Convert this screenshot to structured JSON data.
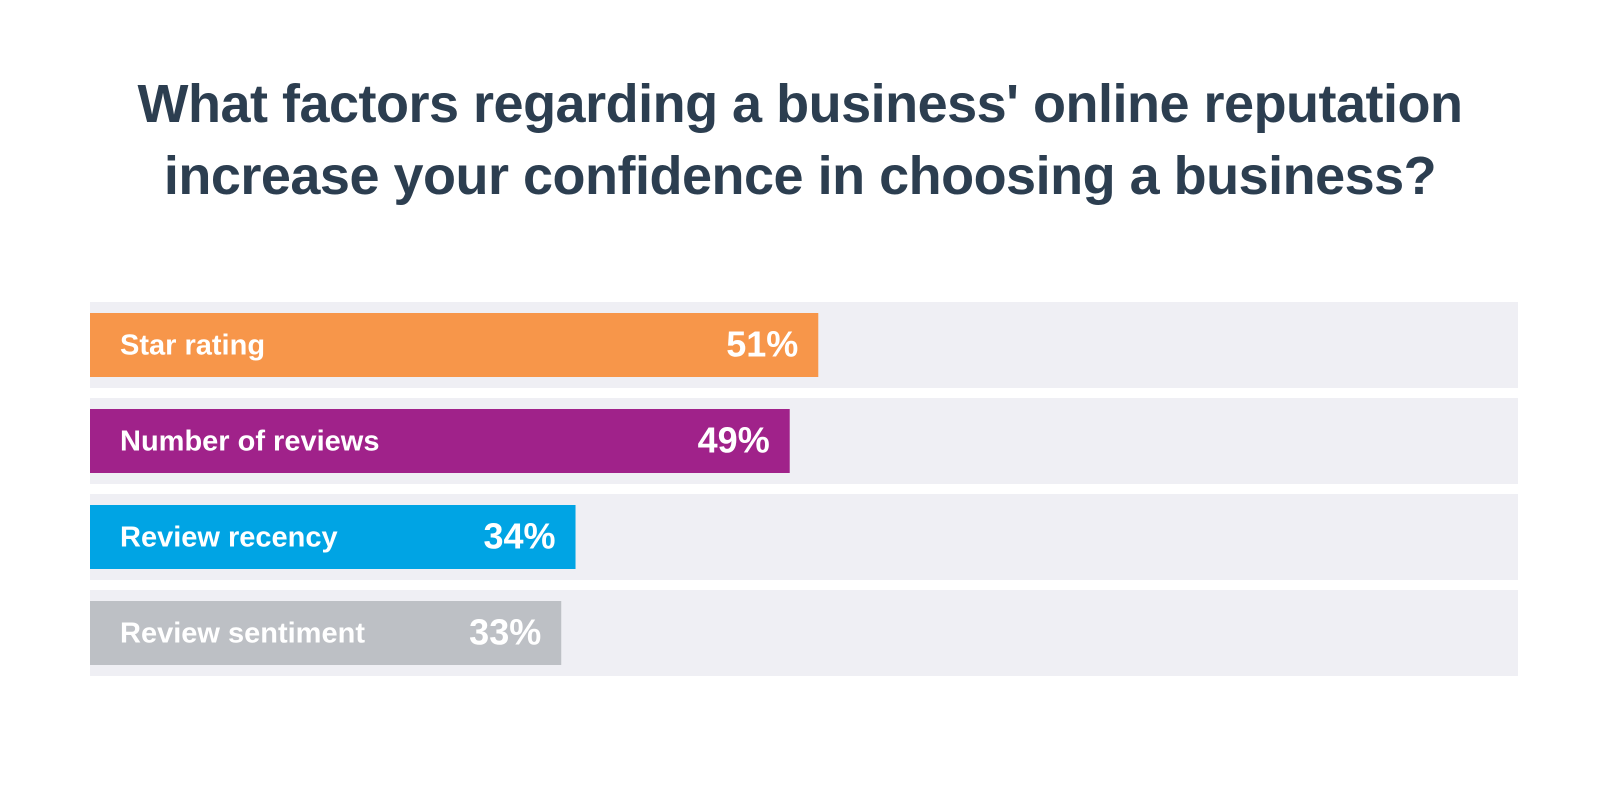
{
  "chart_data": {
    "type": "bar",
    "orientation": "horizontal",
    "title": "What factors regarding a business' online reputation increase your confidence in choosing a business?",
    "categories": [
      "Star rating",
      "Number of reviews",
      "Review recency",
      "Review sentiment"
    ],
    "values": [
      51,
      49,
      34,
      33
    ],
    "value_labels": [
      "51%",
      "49%",
      "34%",
      "33%"
    ],
    "colors": [
      "#f7964a",
      "#a0228a",
      "#00a4e4",
      "#bdc0c5"
    ],
    "xlim": [
      0,
      100
    ]
  }
}
